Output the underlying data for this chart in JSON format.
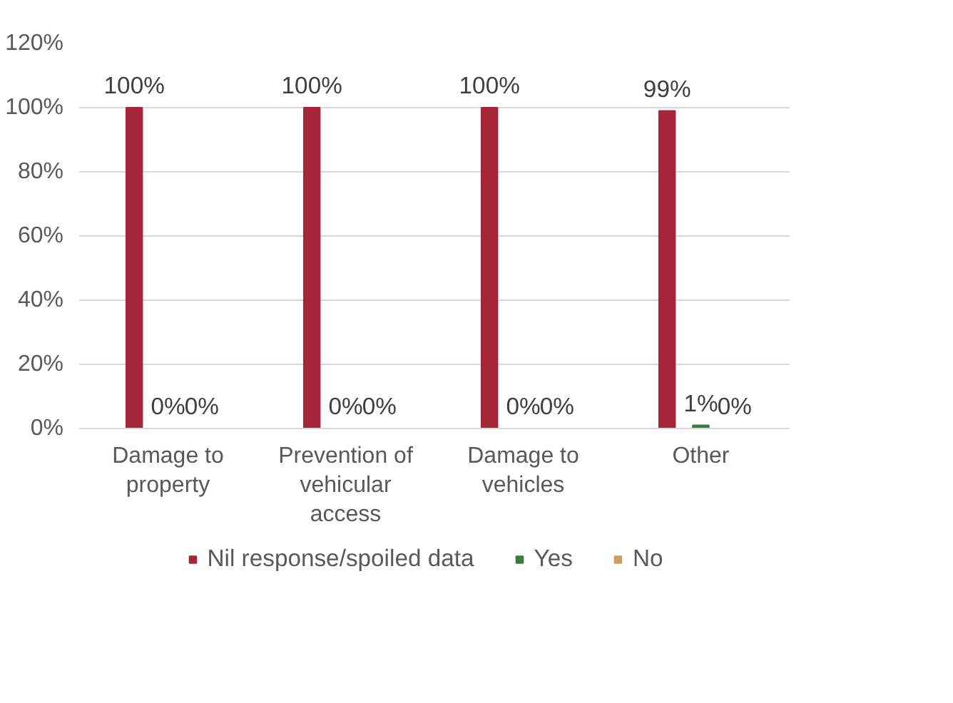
{
  "chart_data": {
    "type": "bar",
    "categories": [
      "Damage to property",
      "Prevention of vehicular access",
      "Damage to vehicles",
      "Other"
    ],
    "series": [
      {
        "name": "Nil response/spoiled data",
        "color": "#a52639",
        "values": [
          100,
          100,
          100,
          99
        ],
        "value_labels": [
          "100%",
          "100%",
          "100%",
          "99%"
        ]
      },
      {
        "name": "Yes",
        "color": "#3d7b3a",
        "values": [
          0,
          0,
          0,
          1
        ],
        "value_labels": [
          "0%",
          "0%",
          "0%",
          "1%"
        ]
      },
      {
        "name": "No",
        "color": "#c9a062",
        "values": [
          0,
          0,
          0,
          0
        ],
        "value_labels": [
          "0%",
          "0%",
          "0%",
          "0%"
        ]
      }
    ],
    "ylim": [
      0,
      120
    ],
    "yticks": [
      {
        "value": 0,
        "label": "0%"
      },
      {
        "value": 20,
        "label": "20%"
      },
      {
        "value": 40,
        "label": "40%"
      },
      {
        "value": 60,
        "label": "60%"
      },
      {
        "value": 80,
        "label": "80%"
      },
      {
        "value": 100,
        "label": "100%"
      },
      {
        "value": 120,
        "label": "120%"
      }
    ],
    "grid": "y",
    "legend": "bottom"
  }
}
